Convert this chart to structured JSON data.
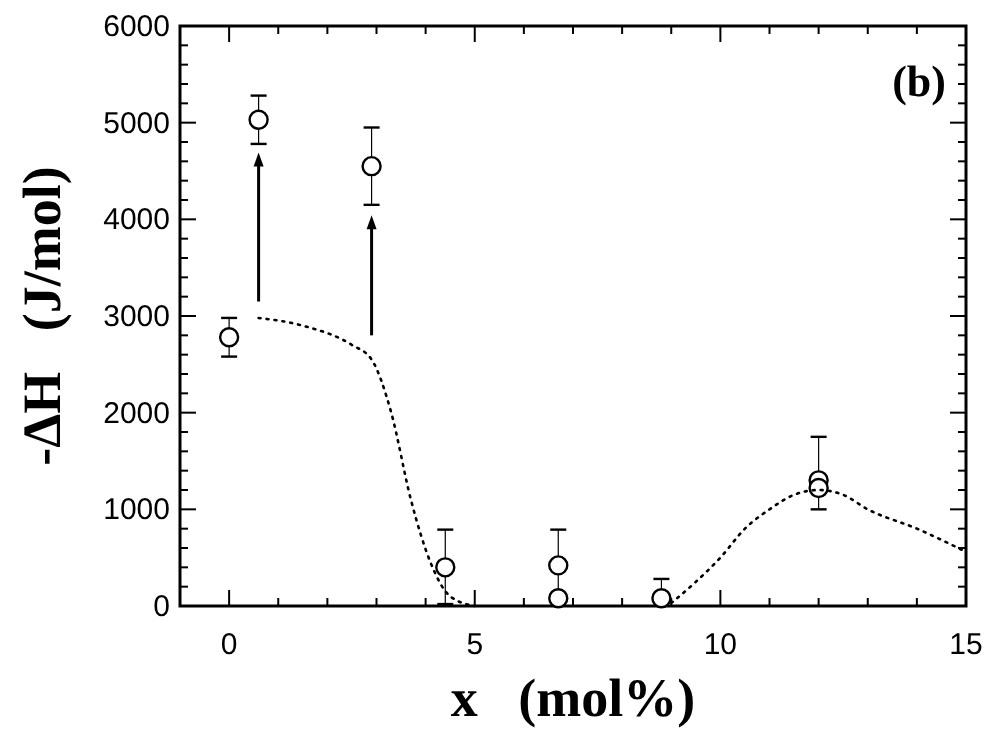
{
  "chart_data": {
    "type": "scatter",
    "xlabel": "x   (mol%)",
    "ylabel": "-ΔH   (J/mol)",
    "annotations": [
      "(b)"
    ],
    "xlim": [
      -1,
      15
    ],
    "ylim": [
      0,
      6000
    ],
    "xticks": [
      {
        "value": -1,
        "label": null
      },
      0,
      {
        "value": 1,
        "label": null
      },
      {
        "value": 2,
        "label": null
      },
      {
        "value": 3,
        "label": null
      },
      {
        "value": 4,
        "label": null
      },
      5,
      {
        "value": 6,
        "label": null
      },
      {
        "value": 7,
        "label": null
      },
      {
        "value": 8,
        "label": null
      },
      {
        "value": 9,
        "label": null
      },
      10,
      {
        "value": 11,
        "label": null
      },
      {
        "value": 12,
        "label": null
      },
      {
        "value": 13,
        "label": null
      },
      {
        "value": 14,
        "label": null
      },
      15
    ],
    "yticks": [
      0,
      1000,
      2000,
      3000,
      4000,
      5000,
      6000
    ],
    "marker": "circle",
    "grid": false,
    "series": [
      {
        "color": "#000000",
        "x": [
          0,
          0.6,
          2.9,
          4.4,
          6.7,
          6.7,
          8.8,
          12,
          12
        ],
        "values": [
          2780,
          5030,
          4550,
          400,
          420,
          80,
          80,
          1300,
          1220
        ],
        "errors": [
          [
            2580,
            2980
          ],
          [
            4780,
            5280
          ],
          [
            4150,
            4950
          ],
          [
            20,
            790
          ],
          [
            60,
            790
          ],
          null,
          [
            80,
            280
          ],
          [
            1000,
            1750
          ],
          null
        ]
      },
      {
        "type": "line",
        "color": "#000000",
        "line_style": "dotted",
        "marker": "none",
        "x": [
          0.6,
          1.5,
          2.5,
          2.9,
          3.3,
          3.7,
          4.1,
          4.5,
          5.0,
          7,
          9.0,
          9.5,
          10,
          10.5,
          11,
          11.5,
          12,
          12.5,
          13,
          14,
          15
        ],
        "values": [
          2980,
          2900,
          2700,
          2550,
          2000,
          1100,
          450,
          100,
          0,
          null,
          30,
          250,
          500,
          800,
          1000,
          1150,
          1200,
          1150,
          1000,
          800,
          560
        ]
      }
    ]
  }
}
